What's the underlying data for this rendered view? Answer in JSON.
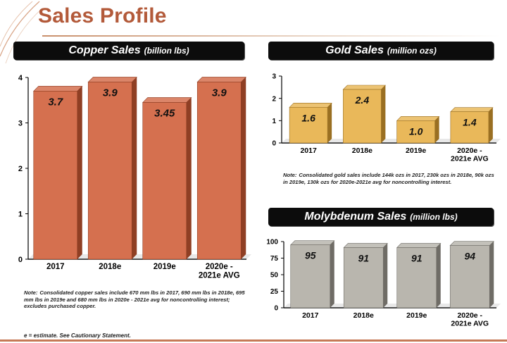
{
  "page": {
    "title": "Sales Profile",
    "footnote": "e = estimate. See Cautionary Statement."
  },
  "panels": {
    "copper": {
      "title": "Copper Sales",
      "unit": "(billion lbs)",
      "note_label": "Note:",
      "note": "Consolidated copper sales include 670 mm lbs in 2017, 690 mm lbs in 2018e, 695 mm lbs in 2019e and 680 mm lbs in 2020e - 2021e avg for noncontrolling interest; excludes purchased copper."
    },
    "gold": {
      "title": "Gold Sales",
      "unit": "(million ozs)",
      "note_label": "Note:",
      "note": "Consolidated gold sales include 144k ozs in 2017, 230k ozs in 2018e, 90k ozs in 2019e, 130k ozs for 2020e-2021e avg for noncontrolling interest."
    },
    "molybdenum": {
      "title": "Molybdenum Sales",
      "unit": "(million lbs)"
    }
  },
  "colors": {
    "copper": "#d5704f",
    "copper_dark": "#8f3f24",
    "gold": "#e9b85a",
    "gold_dark": "#9a6f22",
    "molybdenum": "#b9b6ae",
    "molybdenum_dark": "#6f6c66",
    "title": "#b35a3a",
    "banner": "#0c0c0c"
  },
  "chart_data": [
    {
      "id": "copper",
      "type": "bar",
      "title": "Copper Sales (billion lbs)",
      "categories": [
        "2017",
        "2018e",
        "2019e",
        "2020e -\n2021e AVG"
      ],
      "values": [
        3.7,
        3.9,
        3.45,
        3.9
      ],
      "labels": [
        "3.7",
        "3.9",
        "3.45",
        "3.9"
      ],
      "ylim": [
        0,
        4
      ],
      "yticks": [
        0,
        1,
        2,
        3,
        4
      ],
      "ytick_labels": [
        "0",
        "1",
        "2",
        "3",
        "4"
      ],
      "grid": false,
      "legend": "none"
    },
    {
      "id": "gold",
      "type": "bar",
      "title": "Gold Sales (million ozs)",
      "categories": [
        "2017",
        "2018e",
        "2019e",
        "2020e -\n2021e AVG"
      ],
      "values": [
        1.6,
        2.4,
        1.0,
        1.4
      ],
      "labels": [
        "1.6",
        "2.4",
        "1.0",
        "1.4"
      ],
      "ylim": [
        0,
        3
      ],
      "yticks": [
        0,
        1,
        2,
        3
      ],
      "ytick_labels": [
        "0",
        "1",
        "2",
        "3"
      ],
      "grid": false,
      "legend": "none"
    },
    {
      "id": "molybdenum",
      "type": "bar",
      "title": "Molybdenum Sales (million lbs)",
      "categories": [
        "2017",
        "2018e",
        "2019e",
        "2020e -\n2021e AVG"
      ],
      "values": [
        95,
        91,
        91,
        94
      ],
      "labels": [
        "95",
        "91",
        "91",
        "94"
      ],
      "ylim": [
        0,
        100
      ],
      "yticks": [
        0,
        25,
        50,
        75,
        100
      ],
      "ytick_labels": [
        "0",
        "25",
        "50",
        "75",
        "100"
      ],
      "grid": false,
      "legend": "none"
    }
  ]
}
